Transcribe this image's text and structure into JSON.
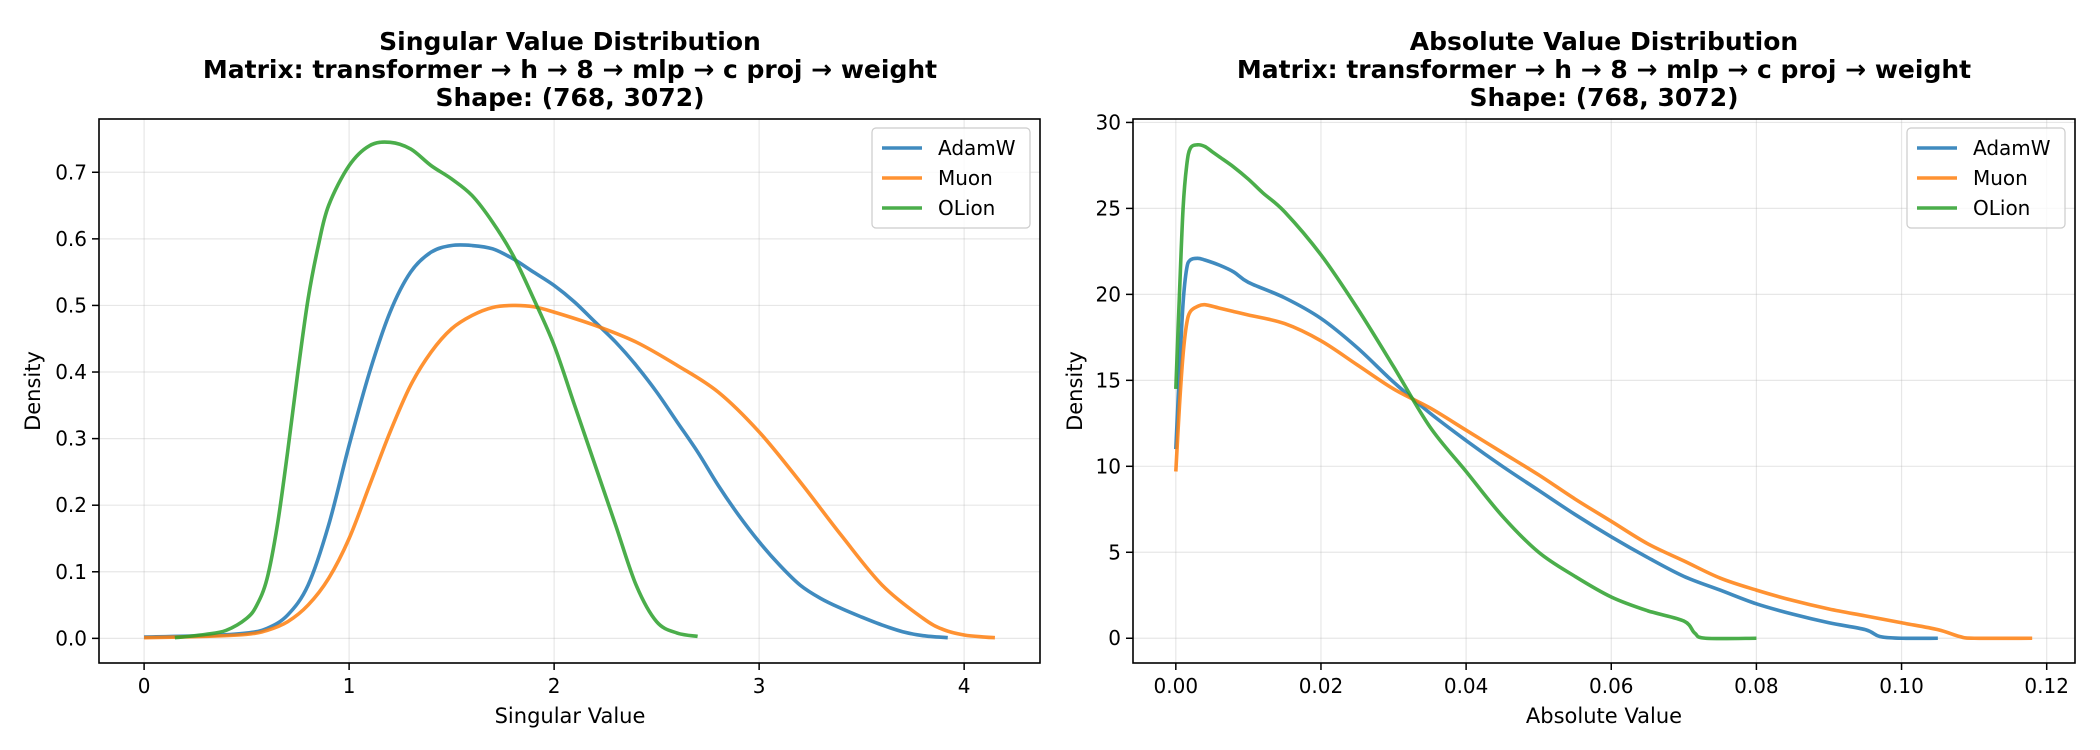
{
  "colors": {
    "AdamW": "#1f77b4",
    "Muon": "#ff7f0e",
    "OLion": "#2ca02c"
  },
  "chart_data": [
    {
      "type": "line",
      "title": [
        "Singular Value Distribution",
        "Matrix: transformer → h → 8 → mlp → c proj → weight",
        "Shape: (768, 3072)"
      ],
      "xlabel": "Singular Value",
      "ylabel": "Density",
      "xlim": [
        -0.22,
        4.37
      ],
      "ylim": [
        -0.037,
        0.78
      ],
      "xticks": [
        0,
        1,
        2,
        3,
        4
      ],
      "xticklabels": [
        "0",
        "1",
        "2",
        "3",
        "4"
      ],
      "yticks": [
        0.0,
        0.1,
        0.2,
        0.3,
        0.4,
        0.5,
        0.6,
        0.7
      ],
      "yticklabels": [
        "0.0",
        "0.1",
        "0.2",
        "0.3",
        "0.4",
        "0.5",
        "0.6",
        "0.7"
      ],
      "grid": true,
      "legend": "top-right",
      "series": [
        {
          "name": "AdamW",
          "x": [
            0,
            0.3,
            0.5,
            0.6,
            0.7,
            0.8,
            0.9,
            1.0,
            1.1,
            1.2,
            1.3,
            1.4,
            1.5,
            1.6,
            1.7,
            1.8,
            1.9,
            2.0,
            2.1,
            2.2,
            2.3,
            2.4,
            2.5,
            2.6,
            2.7,
            2.8,
            2.9,
            3.0,
            3.1,
            3.2,
            3.3,
            3.4,
            3.5,
            3.6,
            3.7,
            3.8,
            3.92
          ],
          "y": [
            0.002,
            0.004,
            0.008,
            0.015,
            0.035,
            0.08,
            0.17,
            0.29,
            0.4,
            0.49,
            0.55,
            0.58,
            0.59,
            0.59,
            0.585,
            0.57,
            0.55,
            0.53,
            0.505,
            0.475,
            0.445,
            0.41,
            0.37,
            0.325,
            0.28,
            0.23,
            0.185,
            0.145,
            0.11,
            0.08,
            0.06,
            0.045,
            0.032,
            0.02,
            0.01,
            0.004,
            0.001
          ]
        },
        {
          "name": "Muon",
          "x": [
            0,
            0.3,
            0.5,
            0.6,
            0.7,
            0.8,
            0.9,
            1.0,
            1.1,
            1.2,
            1.3,
            1.4,
            1.5,
            1.6,
            1.7,
            1.8,
            1.9,
            2.0,
            2.2,
            2.4,
            2.6,
            2.8,
            3.0,
            3.2,
            3.4,
            3.6,
            3.8,
            3.9,
            4.0,
            4.1,
            4.15
          ],
          "y": [
            0.001,
            0.003,
            0.006,
            0.012,
            0.025,
            0.05,
            0.09,
            0.15,
            0.23,
            0.31,
            0.38,
            0.43,
            0.465,
            0.485,
            0.497,
            0.5,
            0.498,
            0.49,
            0.47,
            0.445,
            0.41,
            0.37,
            0.31,
            0.235,
            0.155,
            0.08,
            0.03,
            0.013,
            0.005,
            0.002,
            0.001
          ]
        },
        {
          "name": "OLion",
          "x": [
            0.15,
            0.3,
            0.4,
            0.5,
            0.55,
            0.6,
            0.65,
            0.7,
            0.75,
            0.8,
            0.85,
            0.9,
            1.0,
            1.1,
            1.2,
            1.3,
            1.4,
            1.5,
            1.6,
            1.7,
            1.8,
            1.9,
            2.0,
            2.1,
            2.2,
            2.3,
            2.4,
            2.5,
            2.6,
            2.7
          ],
          "y": [
            0.001,
            0.006,
            0.012,
            0.03,
            0.05,
            0.09,
            0.17,
            0.28,
            0.4,
            0.51,
            0.59,
            0.65,
            0.71,
            0.74,
            0.745,
            0.735,
            0.71,
            0.69,
            0.665,
            0.625,
            0.575,
            0.51,
            0.44,
            0.35,
            0.26,
            0.17,
            0.08,
            0.025,
            0.008,
            0.003
          ]
        }
      ]
    },
    {
      "type": "line",
      "title": [
        "Absolute Value Distribution",
        "Matrix: transformer → h → 8 → mlp → c proj → weight",
        "Shape: (768, 3072)"
      ],
      "xlabel": "Absolute Value",
      "ylabel": "Density",
      "xlim": [
        -0.0059,
        0.1239
      ],
      "ylim": [
        -1.44,
        30.2
      ],
      "xticks": [
        0,
        0.02,
        0.04,
        0.06,
        0.08,
        0.1,
        0.12
      ],
      "xticklabels": [
        "0.00",
        "0.02",
        "0.04",
        "0.06",
        "0.08",
        "0.10",
        "0.12"
      ],
      "yticks": [
        0,
        5,
        10,
        15,
        20,
        25,
        30
      ],
      "yticklabels": [
        "0",
        "5",
        "10",
        "15",
        "20",
        "25",
        "30"
      ],
      "grid": true,
      "legend": "top-right",
      "series": [
        {
          "name": "AdamW",
          "x": [
            0,
            0.0005,
            0.001,
            0.0015,
            0.002,
            0.003,
            0.004,
            0.006,
            0.008,
            0.01,
            0.015,
            0.02,
            0.025,
            0.03,
            0.035,
            0.04,
            0.045,
            0.05,
            0.055,
            0.06,
            0.065,
            0.07,
            0.075,
            0.08,
            0.085,
            0.09,
            0.095,
            0.097,
            0.1,
            0.105
          ],
          "y": [
            11.0,
            15.5,
            19.5,
            21.5,
            22.0,
            22.1,
            22.0,
            21.7,
            21.3,
            20.7,
            19.8,
            18.6,
            16.9,
            14.9,
            13.1,
            11.5,
            10.0,
            8.6,
            7.2,
            5.9,
            4.7,
            3.6,
            2.8,
            2.0,
            1.4,
            0.9,
            0.5,
            0.1,
            0.0,
            0.0
          ]
        },
        {
          "name": "Muon",
          "x": [
            0,
            0.0005,
            0.001,
            0.0015,
            0.002,
            0.003,
            0.004,
            0.006,
            0.008,
            0.01,
            0.015,
            0.02,
            0.025,
            0.03,
            0.035,
            0.04,
            0.045,
            0.05,
            0.055,
            0.06,
            0.065,
            0.07,
            0.075,
            0.08,
            0.085,
            0.09,
            0.095,
            0.1,
            0.105,
            0.108,
            0.11,
            0.118
          ],
          "y": [
            9.7,
            13.5,
            16.5,
            18.3,
            19.0,
            19.3,
            19.4,
            19.2,
            19.0,
            18.8,
            18.3,
            17.3,
            15.9,
            14.5,
            13.4,
            12.1,
            10.8,
            9.5,
            8.1,
            6.8,
            5.5,
            4.5,
            3.5,
            2.8,
            2.2,
            1.7,
            1.3,
            0.9,
            0.5,
            0.1,
            0.0,
            0.0
          ]
        },
        {
          "name": "OLion",
          "x": [
            0,
            0.0005,
            0.001,
            0.0015,
            0.002,
            0.003,
            0.004,
            0.005,
            0.006,
            0.008,
            0.01,
            0.012,
            0.015,
            0.02,
            0.025,
            0.03,
            0.035,
            0.04,
            0.045,
            0.05,
            0.055,
            0.06,
            0.065,
            0.07,
            0.0715,
            0.073,
            0.08
          ],
          "y": [
            14.5,
            20.0,
            25.0,
            27.5,
            28.5,
            28.7,
            28.6,
            28.3,
            28.0,
            27.4,
            26.7,
            25.9,
            24.8,
            22.3,
            19.2,
            15.8,
            12.3,
            9.7,
            7.1,
            5.0,
            3.6,
            2.4,
            1.6,
            1.0,
            0.3,
            0.0,
            0.0
          ]
        }
      ]
    }
  ]
}
